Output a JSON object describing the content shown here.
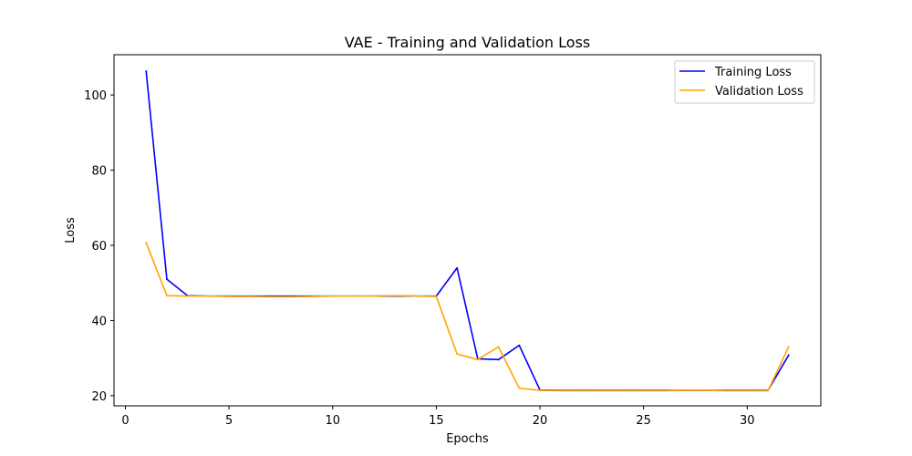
{
  "chart_data": {
    "type": "line",
    "title": "VAE - Training and Validation Loss",
    "xlabel": "Epochs",
    "ylabel": "Loss",
    "xlim": [
      -0.55,
      33.55
    ],
    "ylim": [
      17.3,
      110.7
    ],
    "xticks": [
      0,
      5,
      10,
      15,
      20,
      25,
      30
    ],
    "yticks": [
      20,
      40,
      60,
      80,
      100
    ],
    "grid": false,
    "legend_position": "top-right",
    "x": [
      1,
      2,
      3,
      4,
      5,
      6,
      7,
      8,
      9,
      10,
      11,
      12,
      13,
      14,
      15,
      16,
      17,
      18,
      19,
      20,
      21,
      22,
      23,
      24,
      25,
      26,
      27,
      28,
      29,
      30,
      31,
      32
    ],
    "series": [
      {
        "name": "Training Loss",
        "color": "#0000ff",
        "values": [
          106.3,
          51.0,
          46.6,
          46.5,
          46.5,
          46.5,
          46.5,
          46.5,
          46.5,
          46.5,
          46.5,
          46.5,
          46.5,
          46.5,
          46.5,
          54.0,
          29.8,
          29.6,
          33.4,
          21.5,
          21.4,
          21.4,
          21.4,
          21.4,
          21.4,
          21.4,
          21.4,
          21.4,
          21.4,
          21.4,
          21.4,
          30.8
        ]
      },
      {
        "name": "Validation Loss",
        "color": "#ffa500",
        "values": [
          60.7,
          46.6,
          46.5,
          46.5,
          46.4,
          46.4,
          46.3,
          46.3,
          46.4,
          46.5,
          46.5,
          46.5,
          46.6,
          46.5,
          46.4,
          31.1,
          29.6,
          33.0,
          22.0,
          21.4,
          21.3,
          21.3,
          21.3,
          21.3,
          21.3,
          21.3,
          21.4,
          21.4,
          21.3,
          21.3,
          21.3,
          33.0
        ]
      }
    ]
  }
}
